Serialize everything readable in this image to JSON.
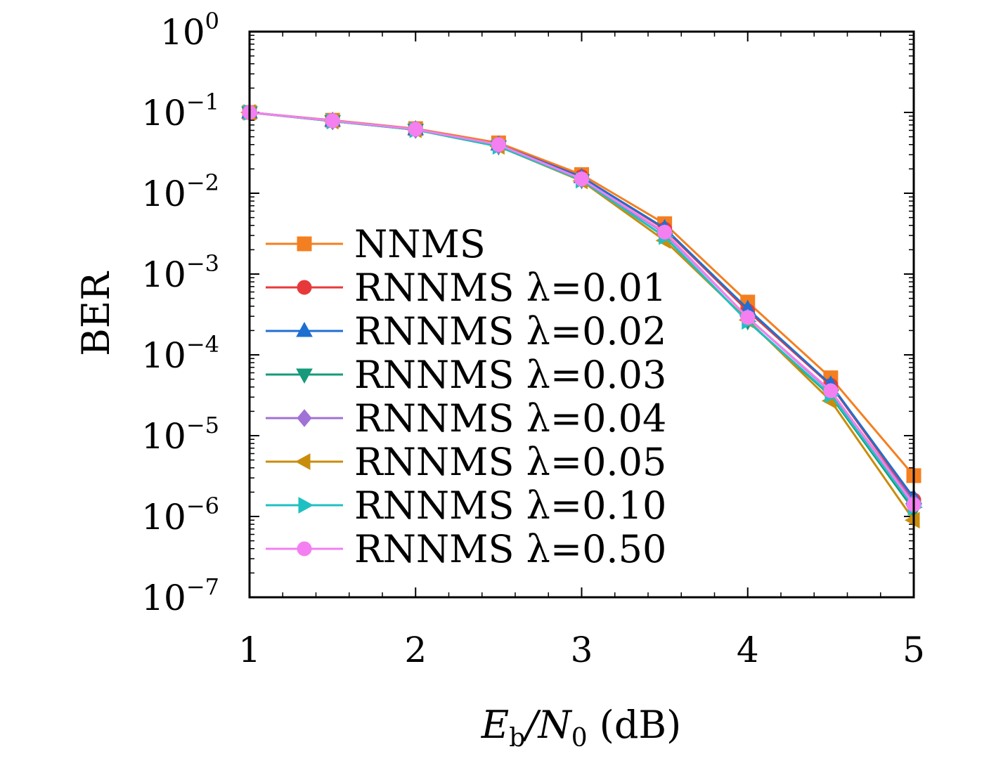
{
  "chart_data": {
    "type": "line",
    "xlabel": "E_b/N_0 (dB)",
    "ylabel": "BER",
    "y_scale": "log",
    "xlim": [
      1,
      5
    ],
    "ylim": [
      1e-07,
      1
    ],
    "x_ticks": [
      "1",
      "2",
      "3",
      "4",
      "5"
    ],
    "y_ticks": [
      {
        "base": "10",
        "exp": "0"
      },
      {
        "base": "10",
        "exp": "−1"
      },
      {
        "base": "10",
        "exp": "−2"
      },
      {
        "base": "10",
        "exp": "−3"
      },
      {
        "base": "10",
        "exp": "−4"
      },
      {
        "base": "10",
        "exp": "−5"
      },
      {
        "base": "10",
        "exp": "−6"
      },
      {
        "base": "10",
        "exp": "−7"
      }
    ],
    "legend_position": "lower-left",
    "x": [
      1,
      1.5,
      2,
      2.5,
      3,
      3.5,
      4,
      4.5,
      5
    ],
    "series": [
      {
        "name": "NNMS",
        "color": "#f47f20",
        "marker": "square",
        "values": [
          0.1,
          0.08,
          0.063,
          0.042,
          0.017,
          0.0042,
          0.00045,
          5.2e-05,
          3.2e-06
        ]
      },
      {
        "name": "RNNMS λ=0.01",
        "color": "#e8393a",
        "marker": "circle",
        "values": [
          0.1,
          0.079,
          0.062,
          0.04,
          0.016,
          0.0036,
          0.00035,
          4.2e-05,
          1.6e-06
        ]
      },
      {
        "name": "RNNMS λ=0.02",
        "color": "#1f6fd1",
        "marker": "triangle-up",
        "values": [
          0.1,
          0.079,
          0.062,
          0.04,
          0.0158,
          0.0037,
          0.00037,
          4.3e-05,
          1.7e-06
        ]
      },
      {
        "name": "RNNMS λ=0.03",
        "color": "#159a7a",
        "marker": "triangle-down",
        "values": [
          0.1,
          0.078,
          0.061,
          0.038,
          0.0145,
          0.0029,
          0.00026,
          3.1e-05,
          1.2e-06
        ]
      },
      {
        "name": "RNNMS λ=0.04",
        "color": "#a071d6",
        "marker": "diamond",
        "values": [
          0.1,
          0.078,
          0.061,
          0.039,
          0.015,
          0.0032,
          0.00029,
          3.5e-05,
          1.5e-06
        ]
      },
      {
        "name": "RNNMS λ=0.05",
        "color": "#c98d0c",
        "marker": "triangle-left",
        "values": [
          0.1,
          0.078,
          0.061,
          0.038,
          0.0142,
          0.0026,
          0.00027,
          2.7e-05,
          9e-07
        ]
      },
      {
        "name": "RNNMS λ=0.10",
        "color": "#1fc0c2",
        "marker": "triangle-right",
        "values": [
          0.1,
          0.078,
          0.061,
          0.038,
          0.0145,
          0.0029,
          0.00026,
          3.2e-05,
          1.3e-06
        ]
      },
      {
        "name": "RNNMS λ=0.50",
        "color": "#f47ff0",
        "marker": "circle",
        "values": [
          0.1,
          0.079,
          0.062,
          0.04,
          0.015,
          0.0033,
          0.00029,
          3.6e-05,
          1.4e-06
        ]
      }
    ]
  }
}
